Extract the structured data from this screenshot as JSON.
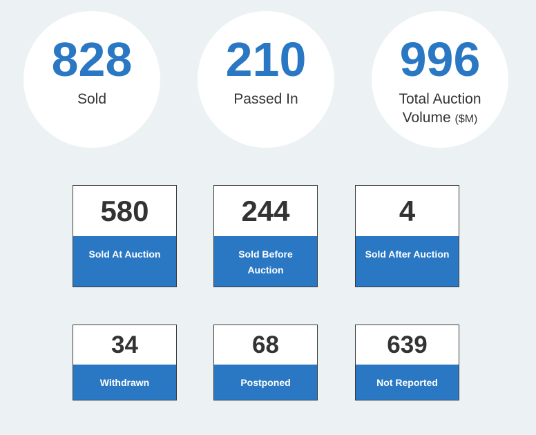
{
  "summary": [
    {
      "value": "828",
      "label": "Sold"
    },
    {
      "value": "210",
      "label": "Passed In"
    },
    {
      "value": "996",
      "label_line1": "Total Auction",
      "label_line2": "Volume",
      "unit": "($M)"
    }
  ],
  "tiles_row1": [
    {
      "value": "580",
      "label": "Sold At Auction"
    },
    {
      "value": "244",
      "label_line1": "Sold Before",
      "label_line2": "Auction"
    },
    {
      "value": "4",
      "label": "Sold After Auction"
    }
  ],
  "tiles_row2": [
    {
      "value": "34",
      "label": "Withdrawn"
    },
    {
      "value": "68",
      "label": "Postponed"
    },
    {
      "value": "639",
      "label": "Not Reported"
    }
  ],
  "colors": {
    "background": "#ecf1f4",
    "accent_blue": "#2a78c3",
    "card_white": "#ffffff",
    "text_dark": "#333333"
  }
}
